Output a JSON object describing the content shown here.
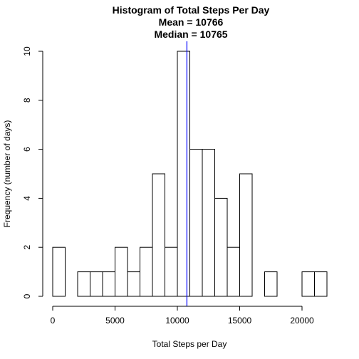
{
  "chart_data": {
    "type": "bar",
    "title": "Histogram of Total Steps Per Day",
    "subtitle_lines": [
      "Mean =  10766",
      "Median = 10765"
    ],
    "xlabel": "Total Steps per Day",
    "ylabel": "Frequency (number of days)",
    "bin_width": 1000,
    "bin_start": 0,
    "values": [
      2,
      0,
      1,
      1,
      1,
      2,
      1,
      2,
      5,
      2,
      10,
      6,
      6,
      4,
      2,
      5,
      0,
      1,
      0,
      0,
      1,
      1
    ],
    "xlim": [
      0,
      22000
    ],
    "ylim": [
      0,
      10
    ],
    "xticks": [
      0,
      5000,
      10000,
      15000,
      20000
    ],
    "yticks": [
      0,
      2,
      4,
      6,
      8,
      10
    ],
    "reference_line": {
      "x": 10766,
      "color": "#0000ff"
    },
    "grid": false
  }
}
